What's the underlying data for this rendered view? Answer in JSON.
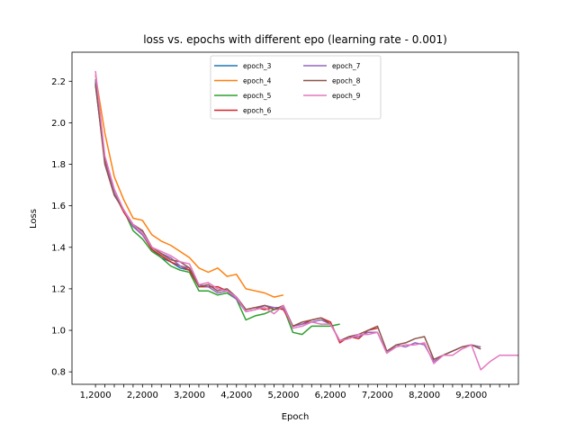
{
  "chart_data": {
    "type": "line",
    "title": "loss vs. epochs with different epo (learning rate - 0.001)",
    "xlabel": "Epoch",
    "ylabel": "Loss",
    "xlim": [
      0.5,
      10.0
    ],
    "ylim": [
      0.74,
      2.34
    ],
    "grid": false,
    "legend_position": "top-center",
    "x_ticks": [
      {
        "value": 1,
        "label": "1,2000"
      },
      {
        "value": 2,
        "label": "2,2000"
      },
      {
        "value": 3,
        "label": "3,2000"
      },
      {
        "value": 4,
        "label": "4,2000"
      },
      {
        "value": 5,
        "label": "5,2000"
      },
      {
        "value": 6,
        "label": "6,2000"
      },
      {
        "value": 7,
        "label": "7,2000"
      },
      {
        "value": 8,
        "label": "8,2000"
      },
      {
        "value": 9,
        "label": "9,2000"
      }
    ],
    "x_minor_ticks": [
      1.2,
      1.4,
      1.6,
      1.8,
      2.2,
      2.4,
      2.6,
      2.8,
      3.2,
      3.4,
      3.6,
      3.8,
      4.2,
      4.4,
      4.6,
      4.8,
      5.2,
      5.4,
      5.6,
      5.8,
      6.2,
      6.4,
      6.6,
      6.8,
      7.2,
      7.4,
      7.6,
      7.8,
      8.2,
      8.4,
      8.6,
      8.8,
      9.2,
      9.4,
      9.6,
      9.8
    ],
    "y_ticks": [
      {
        "value": 0.8,
        "label": "0.8"
      },
      {
        "value": 1.0,
        "label": "1.0"
      },
      {
        "value": 1.2,
        "label": "1.2"
      },
      {
        "value": 1.4,
        "label": "1.4"
      },
      {
        "value": 1.6,
        "label": "1.6"
      },
      {
        "value": 1.8,
        "label": "1.8"
      },
      {
        "value": 2.0,
        "label": "2.0"
      },
      {
        "value": 2.2,
        "label": "2.2"
      }
    ],
    "series": [
      {
        "name": "epoch_3",
        "color": "#1f77b4",
        "x": [
          1.0,
          1.2,
          1.4,
          1.6,
          1.8,
          2.0,
          2.2,
          2.4,
          2.6,
          2.8,
          3.0,
          3.2
        ],
        "y": [
          2.18,
          1.82,
          1.66,
          1.58,
          1.5,
          1.48,
          1.39,
          1.35,
          1.33,
          1.3,
          1.29,
          1.22
        ]
      },
      {
        "name": "epoch_4",
        "color": "#ff7f0e",
        "x": [
          1.0,
          1.2,
          1.4,
          1.6,
          1.8,
          2.0,
          2.2,
          2.4,
          2.6,
          2.8,
          3.0,
          3.2,
          3.4,
          3.6,
          3.8,
          4.0,
          4.2,
          4.4,
          4.6,
          4.8,
          5.0
        ],
        "y": [
          2.23,
          1.95,
          1.74,
          1.63,
          1.54,
          1.53,
          1.46,
          1.43,
          1.41,
          1.38,
          1.35,
          1.3,
          1.28,
          1.3,
          1.26,
          1.27,
          1.2,
          1.19,
          1.18,
          1.16,
          1.17
        ]
      },
      {
        "name": "epoch_5",
        "color": "#2ca02c",
        "x": [
          1.0,
          1.2,
          1.4,
          1.6,
          1.8,
          2.0,
          2.2,
          2.4,
          2.6,
          2.8,
          3.0,
          3.2,
          3.4,
          3.6,
          3.8,
          4.0,
          4.2,
          4.4,
          4.6,
          4.8,
          5.0,
          5.2,
          5.4,
          5.6,
          5.8,
          6.0,
          6.2
        ],
        "y": [
          2.2,
          1.83,
          1.66,
          1.58,
          1.48,
          1.44,
          1.38,
          1.35,
          1.31,
          1.29,
          1.28,
          1.19,
          1.19,
          1.17,
          1.18,
          1.15,
          1.05,
          1.07,
          1.08,
          1.1,
          1.11,
          0.99,
          0.98,
          1.02,
          1.02,
          1.02,
          1.03
        ]
      },
      {
        "name": "epoch_6",
        "color": "#d62728",
        "x": [
          1.0,
          1.2,
          1.4,
          1.6,
          1.8,
          2.0,
          2.2,
          2.4,
          2.6,
          2.8,
          3.0,
          3.2,
          3.4,
          3.6,
          3.8,
          4.0,
          4.2,
          4.4,
          4.6,
          4.8,
          5.0,
          5.2,
          5.4,
          5.6,
          5.8,
          6.0,
          6.2,
          6.4,
          6.6,
          6.8,
          7.0
        ],
        "y": [
          2.19,
          1.82,
          1.66,
          1.57,
          1.5,
          1.46,
          1.39,
          1.36,
          1.33,
          1.31,
          1.29,
          1.21,
          1.21,
          1.21,
          1.19,
          1.16,
          1.1,
          1.11,
          1.1,
          1.11,
          1.1,
          1.02,
          1.03,
          1.05,
          1.06,
          1.04,
          0.94,
          0.97,
          0.96,
          1.0,
          1.01
        ]
      },
      {
        "name": "epoch_7",
        "color": "#9467bd",
        "x": [
          1.0,
          1.2,
          1.4,
          1.6,
          1.8,
          2.0,
          2.2,
          2.4,
          2.6,
          2.8,
          3.0,
          3.2,
          3.4,
          3.6,
          3.8,
          4.0,
          4.2,
          4.4,
          4.6,
          4.8,
          5.0,
          5.2,
          5.4,
          5.6,
          5.8,
          6.0,
          6.2,
          6.4,
          6.6,
          6.8,
          7.0,
          7.2,
          7.4,
          7.6,
          7.8,
          8.0,
          8.2,
          8.4,
          8.6,
          8.8,
          9.0,
          9.2
        ],
        "y": [
          2.21,
          1.81,
          1.66,
          1.58,
          1.5,
          1.46,
          1.4,
          1.37,
          1.35,
          1.31,
          1.3,
          1.22,
          1.21,
          1.18,
          1.19,
          1.15,
          1.09,
          1.1,
          1.12,
          1.11,
          1.11,
          1.02,
          1.03,
          1.04,
          1.05,
          1.03,
          0.95,
          0.97,
          0.97,
          0.99,
          0.99,
          0.89,
          0.93,
          0.92,
          0.94,
          0.93,
          0.85,
          0.88,
          0.9,
          0.92,
          0.93,
          0.92
        ]
      },
      {
        "name": "epoch_8",
        "color": "#8c564b",
        "x": [
          1.0,
          1.2,
          1.4,
          1.6,
          1.8,
          2.0,
          2.2,
          2.4,
          2.6,
          2.8,
          3.0,
          3.2,
          3.4,
          3.6,
          3.8,
          4.0,
          4.2,
          4.4,
          4.6,
          4.8,
          5.0,
          5.2,
          5.4,
          5.6,
          5.8,
          6.0,
          6.2,
          6.4,
          6.6,
          6.8,
          7.0,
          7.2,
          7.4,
          7.6,
          7.8,
          8.0,
          8.2,
          8.4,
          8.6,
          8.8,
          9.0,
          9.2
        ],
        "y": [
          2.19,
          1.8,
          1.65,
          1.58,
          1.51,
          1.48,
          1.4,
          1.37,
          1.34,
          1.33,
          1.3,
          1.21,
          1.22,
          1.19,
          1.2,
          1.16,
          1.1,
          1.11,
          1.12,
          1.1,
          1.12,
          1.02,
          1.04,
          1.05,
          1.06,
          1.03,
          0.95,
          0.97,
          0.98,
          1.0,
          1.02,
          0.9,
          0.93,
          0.94,
          0.96,
          0.97,
          0.86,
          0.88,
          0.9,
          0.92,
          0.93,
          0.91
        ]
      },
      {
        "name": "epoch_9",
        "color": "#e377c2",
        "x": [
          1.0,
          1.2,
          1.4,
          1.6,
          1.8,
          2.0,
          2.2,
          2.4,
          2.6,
          2.8,
          3.0,
          3.2,
          3.4,
          3.6,
          3.8,
          4.0,
          4.2,
          4.4,
          4.6,
          4.8,
          5.0,
          5.2,
          5.4,
          5.6,
          5.8,
          6.0,
          6.2,
          6.4,
          6.6,
          6.8,
          7.0,
          7.2,
          7.4,
          7.6,
          7.8,
          8.0,
          8.2,
          8.4,
          8.6,
          8.8,
          9.0,
          9.2,
          9.4,
          9.6,
          9.8,
          10.0
        ],
        "y": [
          2.25,
          1.84,
          1.68,
          1.58,
          1.51,
          1.47,
          1.4,
          1.38,
          1.36,
          1.33,
          1.32,
          1.22,
          1.23,
          1.2,
          1.19,
          1.16,
          1.09,
          1.1,
          1.11,
          1.08,
          1.12,
          1.01,
          1.02,
          1.04,
          1.03,
          1.03,
          0.95,
          0.96,
          0.98,
          0.98,
          0.99,
          0.89,
          0.92,
          0.93,
          0.93,
          0.94,
          0.84,
          0.88,
          0.88,
          0.91,
          0.93,
          0.81,
          0.85,
          0.88,
          0.88,
          0.88
        ]
      }
    ]
  }
}
